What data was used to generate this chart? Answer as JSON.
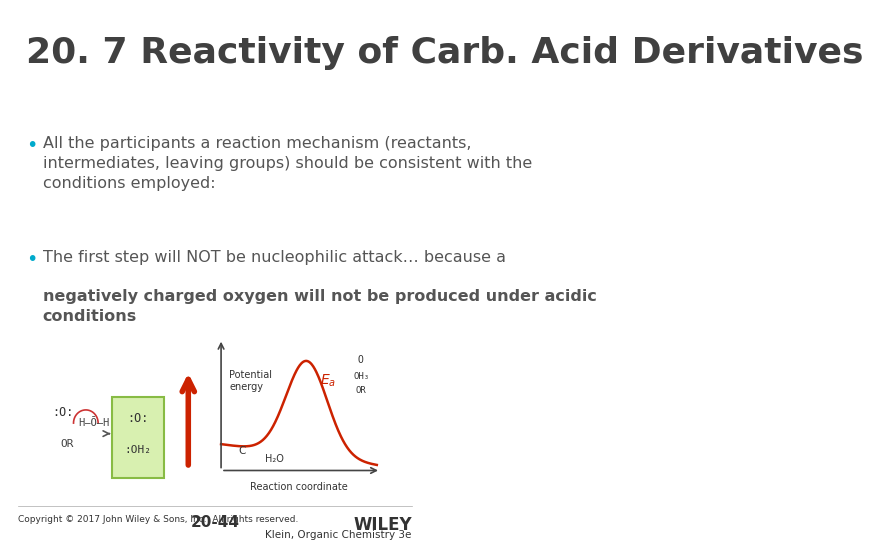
{
  "title": "20. 7 Reactivity of Carb. Acid Derivatives",
  "background_color": "#ffffff",
  "title_color": "#404040",
  "title_fontsize": 26,
  "bullet_color": "#00aacc",
  "bullet1_normal": "All the participants a reaction mechanism (reactants,\nintermediates, leaving groups) should be consistent with the\nconditions employed:",
  "bullet2_normal": "The first step will NOT be nucleophilic attack… because a ",
  "bullet2_bold": "negatively charged oxygen will not be produced under acidic\nconditions",
  "footer_left": "Copyright © 2017 John Wiley & Sons, Inc.  All rights reserved.",
  "footer_center": "20-44",
  "footer_right_top": "WILEY",
  "footer_right_bottom": "Klein, Organic Chemistry 3e",
  "text_color": "#555555",
  "footer_color": "#333333"
}
